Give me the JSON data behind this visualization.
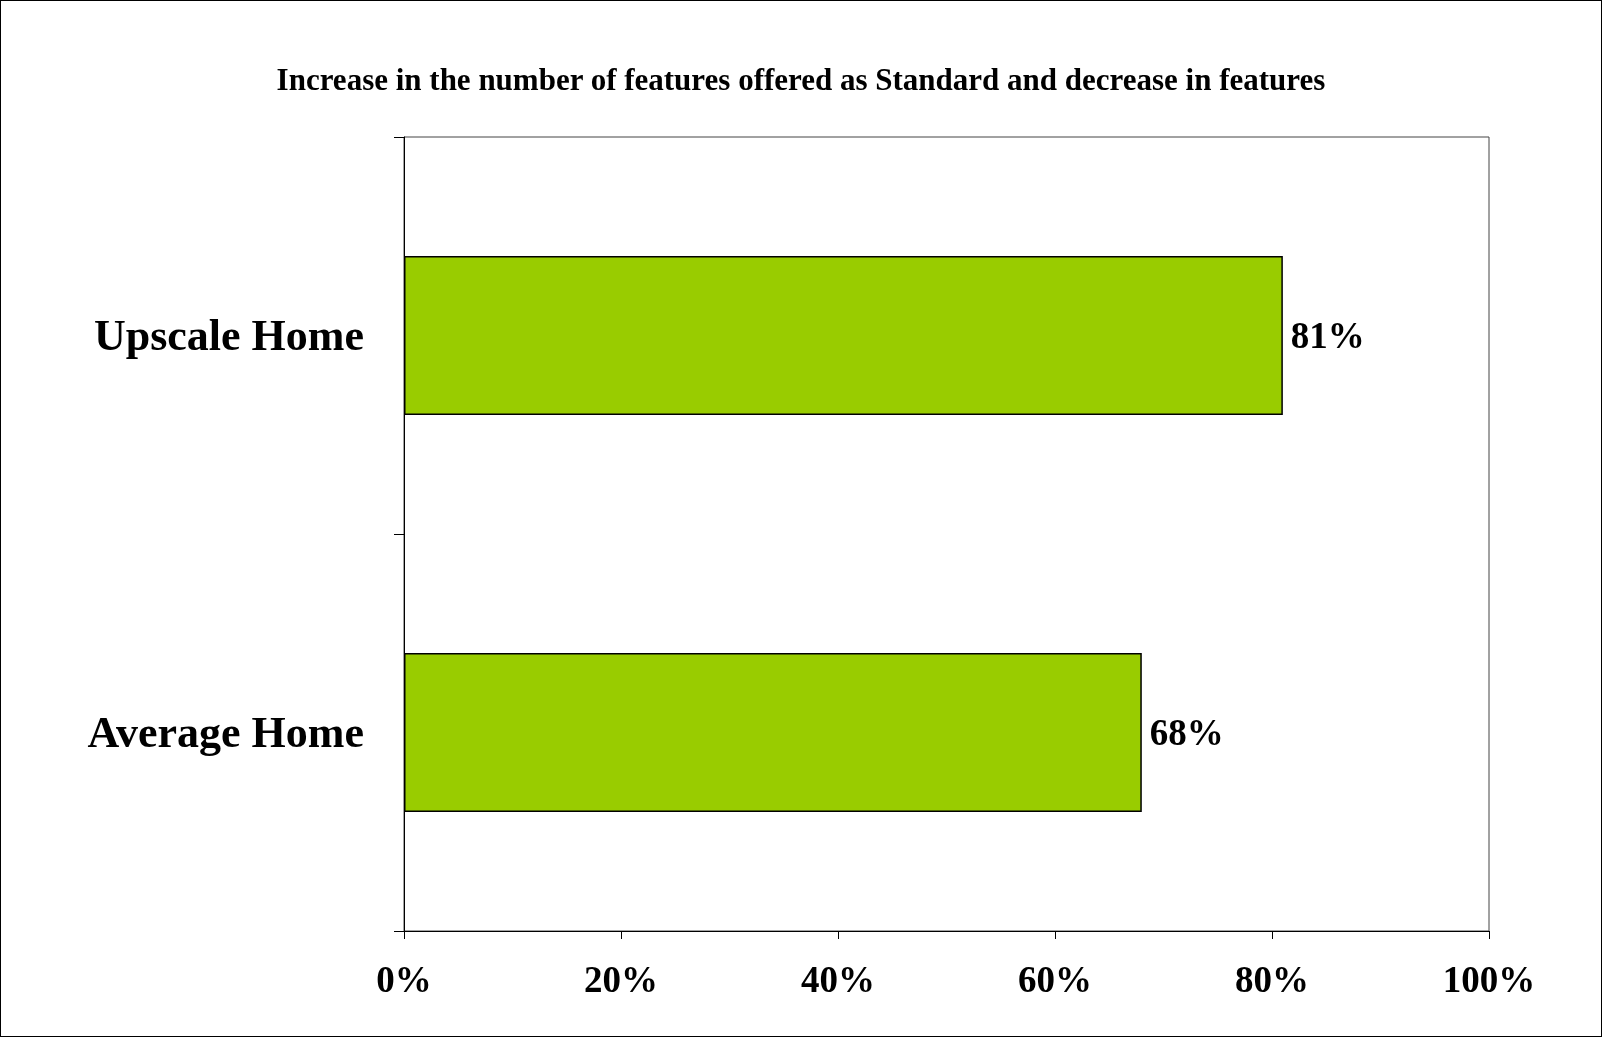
{
  "chart_data": {
    "type": "bar",
    "orientation": "horizontal",
    "title": "Increase in the number of features offered as Standard and decrease in features",
    "categories": [
      "Upscale Home",
      "Average Home"
    ],
    "values": [
      81,
      68
    ],
    "color": "#99cc00",
    "value_labels": [
      "81%",
      "68%"
    ],
    "xlim": [
      0,
      100
    ],
    "xticks": [
      {
        "value": 0,
        "label": "0%"
      },
      {
        "value": 20,
        "label": "20%"
      },
      {
        "value": 40,
        "label": "40%"
      },
      {
        "value": 60,
        "label": "60%"
      },
      {
        "value": 80,
        "label": "80%"
      },
      {
        "value": 100,
        "label": "100%"
      }
    ]
  }
}
